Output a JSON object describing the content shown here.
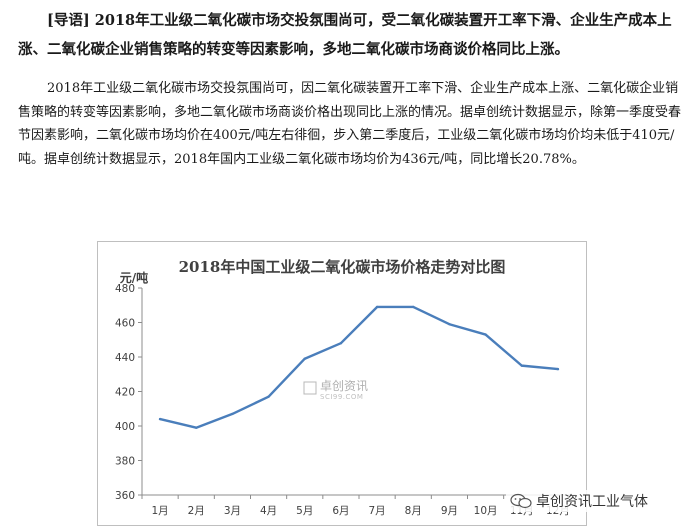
{
  "article": {
    "lead": "[导语] 2018年工业级二氧化碳市场交投氛围尚可，受二氧化碳装置开工率下滑、企业生产成本上涨、二氧化碳企业销售策略的转变等因素影响，多地二氧化碳市场商谈价格同比上涨。",
    "body": "2018年工业级二氧化碳市场交投氛围尚可，因二氧化碳装置开工率下滑、企业生产成本上涨、二氧化碳企业销售策略的转变等因素影响，多地二氧化碳市场商谈价格出现同比上涨的情况。据卓创统计数据显示，除第一季度受春节因素影响，二氧化碳市场均价在400元/吨左右徘徊，步入第二季度后，工业级二氧化碳市场均价均未低于410元/吨。据卓创统计数据显示，2018年国内工业级二氧化碳市场均价为436元/吨，同比增长20.78%。"
  },
  "chart_data": {
    "type": "line",
    "title": "2018年中国工业级二氧化碳市场价格走势对比图",
    "ylabel": "元/吨",
    "xlabel": "",
    "categories": [
      "1月",
      "2月",
      "3月",
      "4月",
      "5月",
      "6月",
      "7月",
      "8月",
      "9月",
      "10月",
      "11月",
      "12月"
    ],
    "series": [
      {
        "values": [
          404,
          399,
          407,
          417,
          439,
          448,
          469,
          469,
          459,
          453,
          435,
          433
        ]
      }
    ],
    "ylim": [
      360,
      480
    ],
    "yticks": [
      360,
      380,
      400,
      420,
      440,
      460,
      480
    ],
    "grid": false,
    "legend": "none",
    "line_color": "#4a7ebb",
    "watermark": "卓创资讯",
    "watermark_sub": "SCI99.COM"
  },
  "badge": {
    "label": "卓创资讯工业气体",
    "icon": "wechat-icon"
  }
}
